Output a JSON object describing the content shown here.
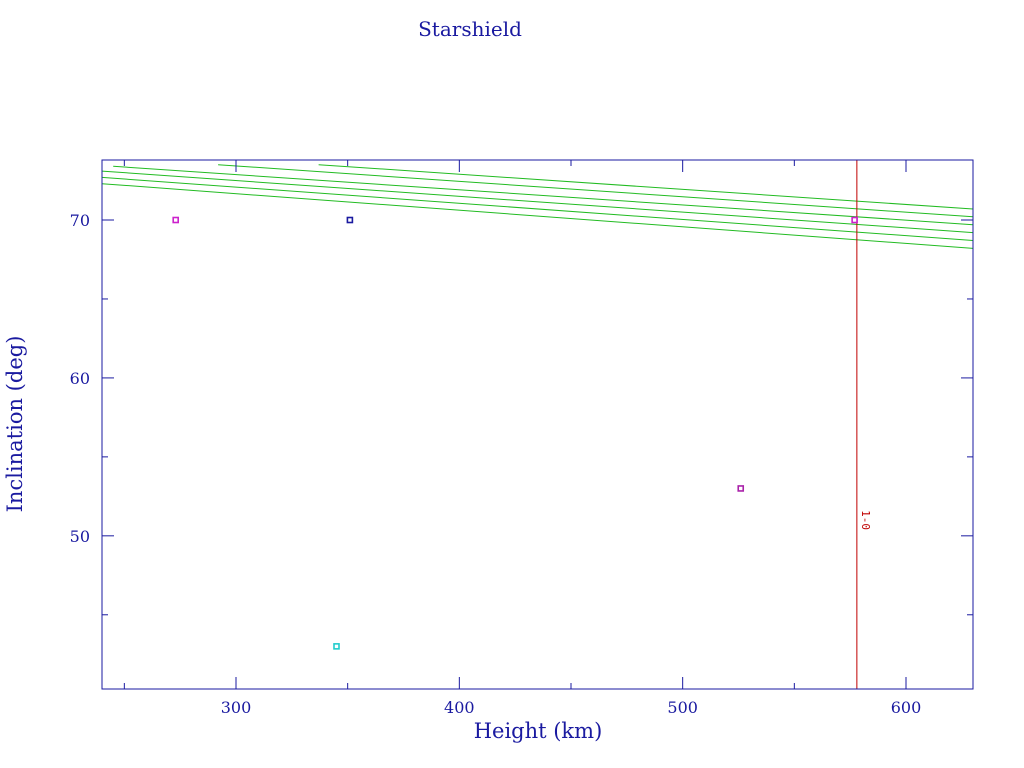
{
  "chart_data": {
    "type": "scatter",
    "title": "Starshield",
    "xlabel": "Height (km)",
    "ylabel": "Inclination (deg)",
    "xlim": [
      240,
      630
    ],
    "ylim": [
      40.3,
      73.8
    ],
    "x_ticks_major": [
      300,
      400,
      500,
      600
    ],
    "x_ticks_minor": [
      250,
      350,
      450,
      550
    ],
    "y_ticks_major": [
      50,
      60,
      70
    ],
    "y_ticks_minor": [
      45,
      55,
      65
    ],
    "grid": false,
    "colors": {
      "frame": "#1a1aa0",
      "curves": "#22bb22",
      "reference_line": "#c00000"
    },
    "points": [
      {
        "x": 273,
        "y": 70.0,
        "color": "#cc22cc"
      },
      {
        "x": 351,
        "y": 70.0,
        "color": "#1a1aa0"
      },
      {
        "x": 577,
        "y": 70.0,
        "color": "#cc22cc"
      },
      {
        "x": 526,
        "y": 53.0,
        "color": "#aa22aa"
      },
      {
        "x": 345,
        "y": 43.0,
        "color": "#22cccc"
      }
    ],
    "curves": [
      {
        "points": [
          [
            240,
            72.3
          ],
          [
            630,
            68.2
          ]
        ]
      },
      {
        "points": [
          [
            240,
            72.7
          ],
          [
            630,
            68.7
          ]
        ]
      },
      {
        "points": [
          [
            240,
            73.1
          ],
          [
            630,
            69.2
          ]
        ]
      },
      {
        "points": [
          [
            245,
            73.4
          ],
          [
            630,
            69.7
          ]
        ]
      },
      {
        "points": [
          [
            292,
            73.5
          ],
          [
            630,
            70.2
          ]
        ]
      },
      {
        "points": [
          [
            337,
            73.5
          ],
          [
            630,
            70.7
          ]
        ]
      }
    ],
    "reference_line": {
      "x": 578,
      "label": "1-0"
    }
  }
}
